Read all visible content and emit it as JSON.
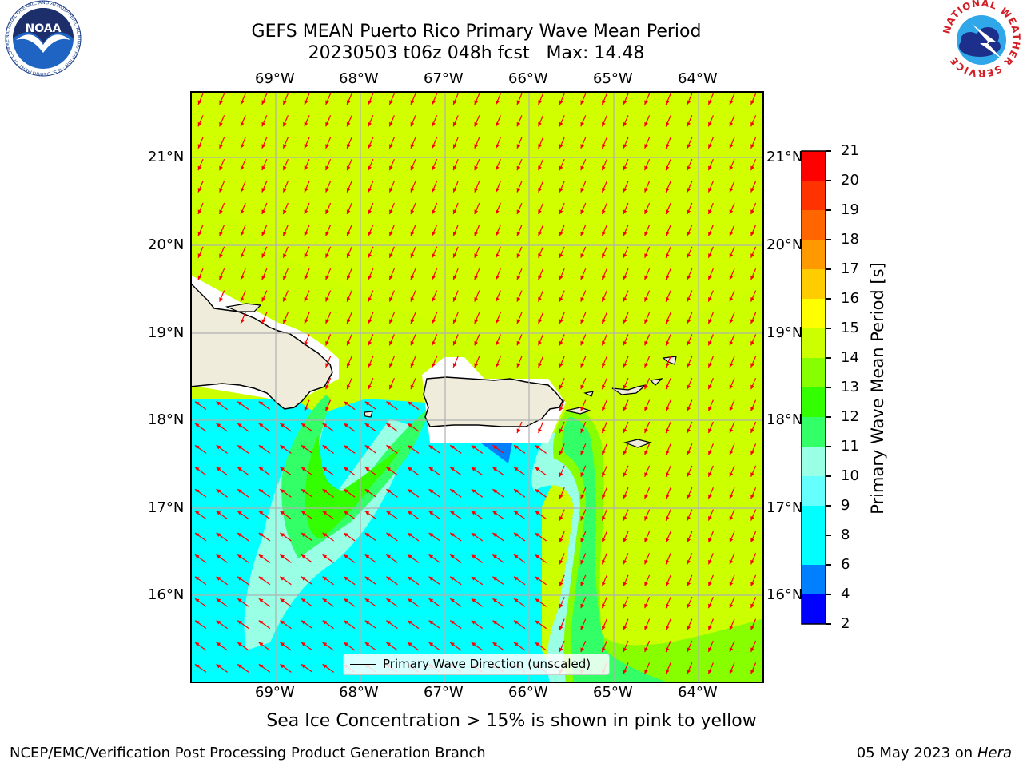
{
  "header": {
    "title_line1": "GEFS MEAN Puerto Rico Primary Wave Mean Period",
    "title_line2": "20230503 t06z 048h fcst   Max: 14.48"
  },
  "logos": {
    "left": {
      "name": "NOAA",
      "ring_text": "NATIONAL OCEANIC AND ATMOSPHERIC ADMINISTRATION · U.S. DEPARTMENT OF COMMERCE"
    },
    "right": {
      "ring_text": "NATIONAL WEATHER SERVICE"
    }
  },
  "map": {
    "lon_labels": [
      "69°W",
      "68°W",
      "67°W",
      "66°W",
      "65°W",
      "64°W"
    ],
    "lat_labels": [
      "21°N",
      "20°N",
      "19°N",
      "18°N",
      "17°N",
      "16°N"
    ],
    "legend": "Primary Wave Direction (unscaled)",
    "colors": {
      "land": "#efecdc",
      "coast": "#000000",
      "arrows": "#ff0000",
      "grid": "#b0b0b0"
    }
  },
  "colorbar": {
    "label": "Primary Wave Mean Period [s]",
    "ticks": [
      "2",
      "4",
      "6",
      "8",
      "9",
      "10",
      "11",
      "12",
      "13",
      "14",
      "15",
      "16",
      "17",
      "18",
      "19",
      "20",
      "21"
    ],
    "colors": [
      "#0000ff",
      "#0080ff",
      "#00ffff",
      "#66ffff",
      "#99ffe5",
      "#33ff66",
      "#33ff00",
      "#88ff00",
      "#ccff00",
      "#ffff00",
      "#ffcc00",
      "#ff9900",
      "#ff6600",
      "#ff3300",
      "#ff0000"
    ]
  },
  "note": "Sea Ice Concentration > 15% is shown in pink to yellow",
  "footer": {
    "left": "NCEP/EMC/Verification Post Processing Product Generation Branch",
    "right_date": "05 May 2023 on",
    "right_machine": "Hera"
  }
}
